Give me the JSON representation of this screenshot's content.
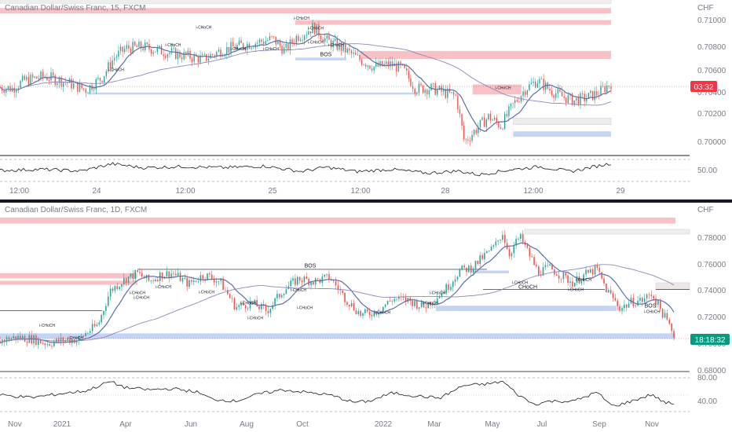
{
  "colors": {
    "up": "#26a69a",
    "down": "#ef5350",
    "supply": "#f7b6bc",
    "demand": "#b9cdf3",
    "neutral": "#ececec",
    "ma_fast": "#5b6fa8",
    "ma_slow": "#8e86b8",
    "osc": "#131722",
    "price_tag_top": "#f23645",
    "price_tag_bottom": "#089981"
  },
  "chart_data": [
    {
      "type": "candlestick",
      "title": "Canadian Dollar/Swiss Franc, 15, FXCM",
      "currency": "CHF",
      "y_range": [
        0.6994,
        0.711
      ],
      "y_ticks": [
        "0.70000",
        "0.70200",
        "0.70400",
        "0.70600",
        "0.70800",
        "0.71000"
      ],
      "x_ticks": [
        "12:00",
        "24",
        "12:00",
        "25",
        "12:00",
        "28",
        "12:00",
        "29"
      ],
      "price_tag": "03:32",
      "anchors": [
        [
          0,
          0.7045
        ],
        [
          6,
          0.7044
        ],
        [
          12,
          0.705
        ],
        [
          22,
          0.7053
        ],
        [
          32,
          0.7049
        ],
        [
          42,
          0.7043
        ],
        [
          50,
          0.7052
        ],
        [
          56,
          0.7067
        ],
        [
          62,
          0.7074
        ],
        [
          70,
          0.7075
        ],
        [
          82,
          0.7071
        ],
        [
          92,
          0.7068
        ],
        [
          100,
          0.7066
        ],
        [
          108,
          0.7072
        ],
        [
          118,
          0.7076
        ],
        [
          128,
          0.7079
        ],
        [
          134,
          0.7081
        ],
        [
          140,
          0.7072
        ],
        [
          145,
          0.7082
        ],
        [
          150,
          0.7086
        ],
        [
          154,
          0.709
        ],
        [
          160,
          0.708
        ],
        [
          168,
          0.7074
        ],
        [
          176,
          0.7066
        ],
        [
          184,
          0.706
        ],
        [
          192,
          0.7062
        ],
        [
          198,
          0.7058
        ],
        [
          204,
          0.7044
        ],
        [
          212,
          0.7044
        ],
        [
          218,
          0.7041
        ],
        [
          224,
          0.7038
        ],
        [
          228,
          0.7004
        ],
        [
          234,
          0.7014
        ],
        [
          240,
          0.7023
        ],
        [
          246,
          0.7016
        ],
        [
          252,
          0.7032
        ],
        [
          258,
          0.7044
        ],
        [
          264,
          0.705
        ],
        [
          270,
          0.7043
        ],
        [
          276,
          0.7038
        ],
        [
          282,
          0.7035
        ],
        [
          288,
          0.7037
        ],
        [
          294,
          0.7041
        ],
        [
          300,
          0.7048
        ]
      ],
      "zones": [
        {
          "kind": "supply",
          "x0": 0,
          "x1": 300,
          "y0": 0.7122,
          "y1": 0.7127
        },
        {
          "kind": "neutral",
          "x0": 0,
          "x1": 300,
          "y0": 0.71075,
          "y1": 0.7112
        },
        {
          "kind": "supply",
          "x0": 0,
          "x1": 300,
          "y0": 0.71,
          "y1": 0.7104
        },
        {
          "kind": "supply",
          "x0": 145,
          "x1": 300,
          "y0": 0.70915,
          "y1": 0.7095
        },
        {
          "kind": "supply",
          "x0": 177,
          "x1": 300,
          "y0": 0.7066,
          "y1": 0.7072
        },
        {
          "kind": "demand",
          "x0": 145,
          "x1": 170,
          "y0": 0.7065,
          "y1": 0.7067
        },
        {
          "kind": "demand",
          "x0": 43,
          "x1": 205,
          "y0": 0.70395,
          "y1": 0.7041
        },
        {
          "kind": "supply",
          "x0": 232,
          "x1": 256,
          "y0": 0.70395,
          "y1": 0.7047
        },
        {
          "kind": "neutral",
          "x0": 252,
          "x1": 300,
          "y0": 0.7017,
          "y1": 0.7022
        },
        {
          "kind": "demand",
          "x0": 252,
          "x1": 300,
          "y0": 0.7008,
          "y1": 0.7012
        }
      ],
      "labels": [
        {
          "text": "BOS",
          "x": 160,
          "y": 0.7068,
          "kind": "bos"
        },
        {
          "text": "i-CHoCH",
          "x": 100,
          "y": 0.70885,
          "kind": "ann"
        },
        {
          "text": "i-CHoCH",
          "x": 85,
          "y": 0.70755,
          "kind": "ann"
        },
        {
          "text": "i-CHoCH",
          "x": 117,
          "y": 0.70725,
          "kind": "ann"
        },
        {
          "text": "i-CHoCH",
          "x": 133,
          "y": 0.70725,
          "kind": "ann"
        },
        {
          "text": "i-CHoCH",
          "x": 148,
          "y": 0.70955,
          "kind": "ann"
        },
        {
          "text": "i-CHoCH",
          "x": 155,
          "y": 0.7088,
          "kind": "ann"
        },
        {
          "text": "i-CHoCH",
          "x": 155,
          "y": 0.70775,
          "kind": "ann"
        },
        {
          "text": "i-CHoCH",
          "x": 165,
          "y": 0.70755,
          "kind": "ann"
        },
        {
          "text": "i-CHoCH",
          "x": 57,
          "y": 0.7057,
          "kind": "ann"
        },
        {
          "text": "i-CHoCH",
          "x": 247,
          "y": 0.70435,
          "kind": "ann"
        }
      ],
      "osc_ticks": [
        "50.00"
      ],
      "osc_anchors": [
        [
          0,
          50
        ],
        [
          20,
          52
        ],
        [
          40,
          49
        ],
        [
          55,
          62
        ],
        [
          70,
          55
        ],
        [
          90,
          57
        ],
        [
          110,
          55
        ],
        [
          130,
          58
        ],
        [
          148,
          48
        ],
        [
          160,
          56
        ],
        [
          175,
          48
        ],
        [
          192,
          52
        ],
        [
          210,
          45
        ],
        [
          225,
          49
        ],
        [
          235,
          42
        ],
        [
          250,
          51
        ],
        [
          265,
          57
        ],
        [
          280,
          48
        ],
        [
          300,
          63
        ]
      ]
    },
    {
      "type": "candlestick",
      "title": "Canadian Dollar/Swiss Franc, 1D, FXCM",
      "currency": "CHF",
      "y_range": [
        0.677,
        0.7875
      ],
      "y_ticks": [
        "0.68000",
        "0.70000",
        "0.72000",
        "0.74000",
        "0.76000",
        "0.78000"
      ],
      "x_ticks": [
        "Nov",
        "2021",
        "Apr",
        "Jun",
        "Aug",
        "Oct",
        "2022",
        "Mar",
        "May",
        "Jul",
        "Sep",
        "Nov"
      ],
      "price_tag": "18:18:32",
      "anchors": [
        [
          0,
          0.698
        ],
        [
          20,
          0.7005
        ],
        [
          40,
          0.6995
        ],
        [
          60,
          0.696
        ],
        [
          80,
          0.6985
        ],
        [
          100,
          0.699
        ],
        [
          110,
          0.704
        ],
        [
          125,
          0.71
        ],
        [
          140,
          0.735
        ],
        [
          160,
          0.744
        ],
        [
          175,
          0.748
        ],
        [
          190,
          0.742
        ],
        [
          205,
          0.747
        ],
        [
          220,
          0.748
        ],
        [
          240,
          0.74
        ],
        [
          260,
          0.747
        ],
        [
          280,
          0.742
        ],
        [
          300,
          0.723
        ],
        [
          320,
          0.726
        ],
        [
          340,
          0.72
        ],
        [
          360,
          0.735
        ],
        [
          380,
          0.744
        ],
        [
          400,
          0.742
        ],
        [
          420,
          0.745
        ],
        [
          440,
          0.729
        ],
        [
          460,
          0.717
        ],
        [
          480,
          0.72
        ],
        [
          500,
          0.729
        ],
        [
          520,
          0.728
        ],
        [
          540,
          0.723
        ],
        [
          555,
          0.73
        ],
        [
          570,
          0.738
        ],
        [
          585,
          0.75
        ],
        [
          600,
          0.752
        ],
        [
          615,
          0.76
        ],
        [
          630,
          0.768
        ],
        [
          640,
          0.778
        ],
        [
          648,
          0.762
        ],
        [
          655,
          0.769
        ],
        [
          662,
          0.775
        ],
        [
          672,
          0.764
        ],
        [
          685,
          0.749
        ],
        [
          700,
          0.752
        ],
        [
          715,
          0.746
        ],
        [
          730,
          0.741
        ],
        [
          745,
          0.747
        ],
        [
          760,
          0.751
        ],
        [
          772,
          0.736
        ],
        [
          790,
          0.722
        ],
        [
          805,
          0.727
        ],
        [
          818,
          0.728
        ],
        [
          830,
          0.733
        ],
        [
          845,
          0.717
        ],
        [
          858,
          0.703
        ]
      ],
      "zones": [
        {
          "kind": "supply",
          "x0": 0,
          "x1": 860,
          "y0": 0.7848,
          "y1": 0.7892
        },
        {
          "kind": "neutral",
          "x0": 668,
          "x1": 878,
          "y0": 0.777,
          "y1": 0.7805
        },
        {
          "kind": "supply",
          "x0": 0,
          "x1": 175,
          "y0": 0.7442,
          "y1": 0.748
        },
        {
          "kind": "supply",
          "x0": 0,
          "x1": 175,
          "y0": 0.7395,
          "y1": 0.7425
        },
        {
          "kind": "supply",
          "x0": 835,
          "x1": 878,
          "y0": 0.736,
          "y1": 0.741
        },
        {
          "kind": "neutral",
          "x0": 835,
          "x1": 878,
          "y0": 0.736,
          "y1": 0.741
        },
        {
          "kind": "demand",
          "x0": 555,
          "x1": 785,
          "y0": 0.72,
          "y1": 0.724
        },
        {
          "kind": "demand",
          "x0": 602,
          "x1": 648,
          "y0": 0.748,
          "y1": 0.75
        },
        {
          "kind": "demand",
          "x0": 0,
          "x1": 860,
          "y0": 0.6995,
          "y1": 0.7035
        }
      ],
      "lines": [
        {
          "x0": 175,
          "x1": 620,
          "y": 0.7509
        },
        {
          "x0": 0,
          "x1": 130,
          "y": 0.7203
        },
        {
          "x0": 615,
          "x1": 770,
          "y": 0.736
        },
        {
          "x0": 835,
          "x1": 878,
          "y": 0.736
        }
      ],
      "labels": [
        {
          "text": "BOS",
          "x": 395,
          "y": 0.7523,
          "kind": "bos"
        },
        {
          "text": "CHoCH",
          "x": 672,
          "y": 0.7365,
          "kind": "bos"
        },
        {
          "text": "BOS",
          "x": 828,
          "y": 0.7226,
          "kind": "bos"
        },
        {
          "text": "i-CHoCH",
          "x": 175,
          "y": 0.7325,
          "kind": "ann"
        },
        {
          "text": "i-CHoCH",
          "x": 180,
          "y": 0.729,
          "kind": "ann"
        },
        {
          "text": "i-CHoCH",
          "x": 208,
          "y": 0.737,
          "kind": "ann"
        },
        {
          "text": "i-CHoCH",
          "x": 263,
          "y": 0.733,
          "kind": "ann"
        },
        {
          "text": "i-CHoCH",
          "x": 316,
          "y": 0.725,
          "kind": "ann"
        },
        {
          "text": "i-CHoCH",
          "x": 325,
          "y": 0.714,
          "kind": "ann"
        },
        {
          "text": "i-CHoCH",
          "x": 380,
          "y": 0.7345,
          "kind": "ann"
        },
        {
          "text": "i-CHoCH",
          "x": 388,
          "y": 0.7215,
          "kind": "ann"
        },
        {
          "text": "i-CHoCH",
          "x": 60,
          "y": 0.7085,
          "kind": "ann"
        },
        {
          "text": "i-CHoCH",
          "x": 96,
          "y": 0.699,
          "kind": "ann"
        },
        {
          "text": "i-CHoCH",
          "x": 487,
          "y": 0.718,
          "kind": "ann"
        },
        {
          "text": "i-CHoCH",
          "x": 548,
          "y": 0.725,
          "kind": "ann"
        },
        {
          "text": "i-CHoCH",
          "x": 557,
          "y": 0.7325,
          "kind": "ann"
        },
        {
          "text": "i-CHoCH",
          "x": 662,
          "y": 0.7402,
          "kind": "ann"
        },
        {
          "text": "i-CHoCH",
          "x": 733,
          "y": 0.735,
          "kind": "ann"
        },
        {
          "text": "i-CHoCH",
          "x": 743,
          "y": 0.742,
          "kind": "ann"
        },
        {
          "text": "i-CHoCH",
          "x": 830,
          "y": 0.7185,
          "kind": "ann"
        }
      ],
      "osc_ticks": [
        "80.00",
        "40.00"
      ],
      "osc_anchors": [
        [
          0,
          52
        ],
        [
          40,
          47
        ],
        [
          80,
          55
        ],
        [
          110,
          60
        ],
        [
          140,
          78
        ],
        [
          160,
          66
        ],
        [
          190,
          62
        ],
        [
          220,
          64
        ],
        [
          250,
          58
        ],
        [
          270,
          44
        ],
        [
          300,
          40
        ],
        [
          330,
          54
        ],
        [
          360,
          62
        ],
        [
          390,
          57
        ],
        [
          420,
          52
        ],
        [
          450,
          38
        ],
        [
          470,
          40
        ],
        [
          500,
          56
        ],
        [
          530,
          50
        ],
        [
          560,
          46
        ],
        [
          590,
          70
        ],
        [
          620,
          73
        ],
        [
          640,
          78
        ],
        [
          660,
          52
        ],
        [
          680,
          34
        ],
        [
          700,
          40
        ],
        [
          730,
          40
        ],
        [
          760,
          57
        ],
        [
          780,
          30
        ],
        [
          800,
          38
        ],
        [
          830,
          53
        ],
        [
          845,
          38
        ],
        [
          858,
          35
        ]
      ]
    }
  ]
}
